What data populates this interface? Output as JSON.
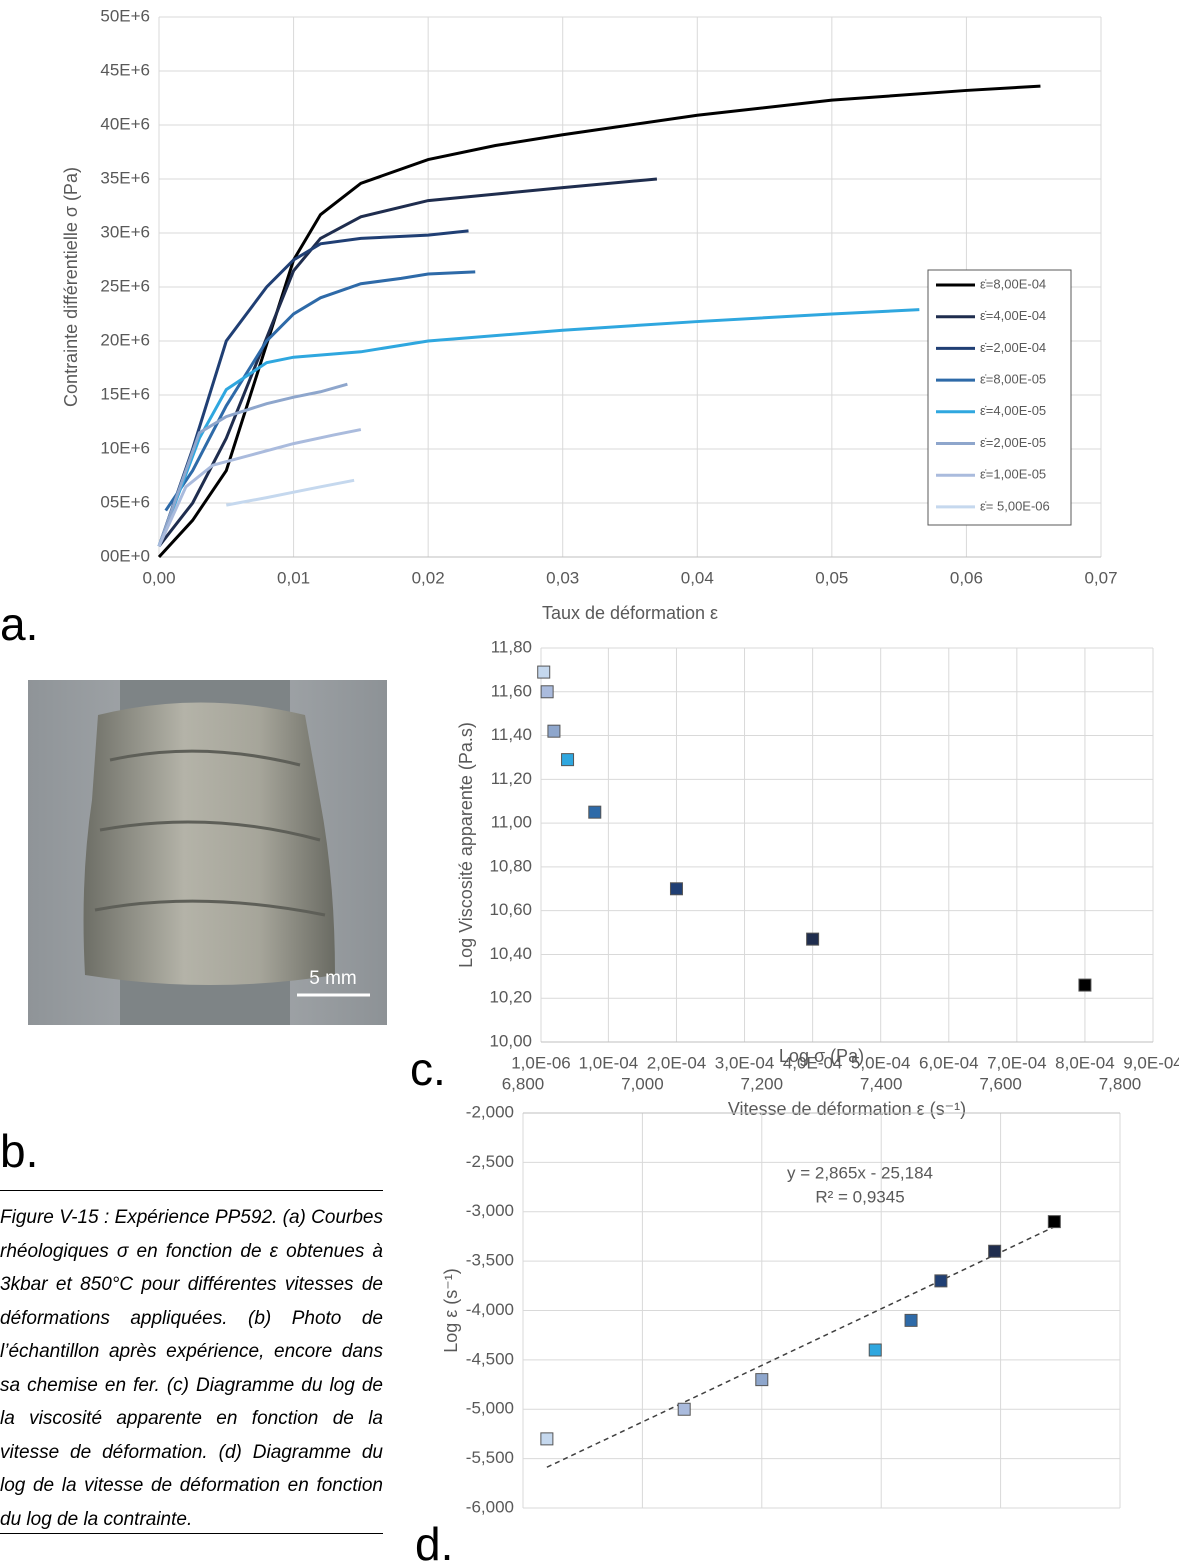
{
  "chart_data": [
    {
      "type": "line",
      "xlabel": "Taux de déformation ε",
      "ylabel": "Contrainte différentielle σ (Pa)",
      "xlim": [
        0,
        0.07
      ],
      "xticks": [
        {
          "value": 0,
          "label": "0,00"
        },
        {
          "value": 0.01,
          "label": "0,01"
        },
        {
          "value": 0.02,
          "label": "0,02"
        },
        {
          "value": 0.03,
          "label": "0,03"
        },
        {
          "value": 0.04,
          "label": "0,04"
        },
        {
          "value": 0.05,
          "label": "0,05"
        },
        {
          "value": 0.06,
          "label": "0,06"
        },
        {
          "value": 0.07,
          "label": "0,07"
        }
      ],
      "ylim": [
        0,
        50000000
      ],
      "yticks": [
        {
          "value": 0,
          "label": "00E+0"
        },
        {
          "value": 5000000,
          "label": "05E+6"
        },
        {
          "value": 10000000,
          "label": "10E+6"
        },
        {
          "value": 15000000,
          "label": "15E+6"
        },
        {
          "value": 20000000,
          "label": "20E+6"
        },
        {
          "value": 25000000,
          "label": "25E+6"
        },
        {
          "value": 30000000,
          "label": "30E+6"
        },
        {
          "value": 35000000,
          "label": "35E+6"
        },
        {
          "value": 40000000,
          "label": "40E+6"
        },
        {
          "value": 45000000,
          "label": "45E+6"
        },
        {
          "value": 50000000,
          "label": "50E+6"
        }
      ],
      "grid": true,
      "legend": "right",
      "series": [
        {
          "name": "ε̇=8,00E-04",
          "color": "#000000",
          "x": [
            0,
            0.0025,
            0.005,
            0.01,
            0.012,
            0.015,
            0.02,
            0.025,
            0.03,
            0.04,
            0.05,
            0.06,
            0.0655
          ],
          "values": [
            0,
            3400000,
            8000000,
            27500000,
            31700000,
            34600000,
            36800000,
            38100000,
            39100000,
            40900000,
            42300000,
            43200000,
            43600000
          ]
        },
        {
          "name": "ε̇=4,00E-04",
          "color": "#1f2d4e",
          "x": [
            0,
            0.0025,
            0.005,
            0.01,
            0.012,
            0.015,
            0.02,
            0.025,
            0.03,
            0.037
          ],
          "values": [
            1000000,
            5000000,
            11000000,
            26500000,
            29500000,
            31500000,
            33000000,
            33600000,
            34200000,
            35000000
          ]
        },
        {
          "name": "ε̇=2,00E-04",
          "color": "#203f74",
          "x": [
            0,
            0.0025,
            0.005,
            0.008,
            0.01,
            0.012,
            0.015,
            0.02,
            0.023
          ],
          "values": [
            1000000,
            10000000,
            20000000,
            25000000,
            27500000,
            29000000,
            29500000,
            29800000,
            30200000
          ]
        },
        {
          "name": "ε̇=8,00E-05",
          "color": "#2e6aa8",
          "x": [
            0.0005,
            0.0025,
            0.005,
            0.008,
            0.01,
            0.012,
            0.015,
            0.018,
            0.02,
            0.0235
          ],
          "values": [
            4300000,
            8000000,
            14000000,
            20000000,
            22500000,
            24000000,
            25300000,
            25800000,
            26200000,
            26400000
          ]
        },
        {
          "name": "ε̇=4,00E-05",
          "color": "#2fa7df",
          "x": [
            0,
            0.003,
            0.005,
            0.008,
            0.01,
            0.015,
            0.02,
            0.03,
            0.04,
            0.05,
            0.0565
          ],
          "values": [
            1000000,
            11000000,
            15500000,
            18000000,
            18500000,
            19000000,
            20000000,
            21000000,
            21800000,
            22500000,
            22900000
          ]
        },
        {
          "name": "ε̇=2,00E-05",
          "color": "#8ea6cc",
          "x": [
            0,
            0.003,
            0.005,
            0.008,
            0.01,
            0.012,
            0.014
          ],
          "values": [
            1000000,
            11500000,
            13000000,
            14200000,
            14800000,
            15300000,
            16000000
          ]
        },
        {
          "name": "ε̇=1,00E-05",
          "color": "#aabbdd",
          "x": [
            0,
            0.002,
            0.004,
            0.007,
            0.01,
            0.013,
            0.015
          ],
          "values": [
            1000000,
            6500000,
            8500000,
            9500000,
            10500000,
            11300000,
            11800000
          ]
        },
        {
          "name": "ε̇= 5,00E-06",
          "color": "#c5d8ee",
          "x": [
            0.005,
            0.008,
            0.01,
            0.012,
            0.0145
          ],
          "values": [
            4800000,
            5500000,
            6000000,
            6500000,
            7100000
          ]
        }
      ]
    },
    {
      "type": "scatter",
      "xlabel": "Vitesse de déformation ε (s⁻¹)",
      "ylabel": "Log Viscosité apparente  (Pa.s)",
      "xlim": [
        1e-06,
        0.0009
      ],
      "xticks": [
        {
          "value": 1e-06,
          "label": "1,0E-06"
        },
        {
          "value": 0.0001,
          "label": "1,0E-04"
        },
        {
          "value": 0.0002,
          "label": "2,0E-04"
        },
        {
          "value": 0.0003,
          "label": "3,0E-04"
        },
        {
          "value": 0.0004,
          "label": "4,0E-04"
        },
        {
          "value": 0.0005,
          "label": "5,0E-04"
        },
        {
          "value": 0.0006,
          "label": "6,0E-04"
        },
        {
          "value": 0.0007,
          "label": "7,0E-04"
        },
        {
          "value": 0.0008,
          "label": "8,0E-04"
        },
        {
          "value": 0.0009,
          "label": "9,0E-04"
        }
      ],
      "ylim": [
        10,
        11.8
      ],
      "yticks": [
        {
          "value": 10,
          "label": "10,00"
        },
        {
          "value": 10.2,
          "label": "10,20"
        },
        {
          "value": 10.4,
          "label": "10,40"
        },
        {
          "value": 10.6,
          "label": "10,60"
        },
        {
          "value": 10.8,
          "label": "10,80"
        },
        {
          "value": 11,
          "label": "11,00"
        },
        {
          "value": 11.2,
          "label": "11,20"
        },
        {
          "value": 11.4,
          "label": "11,40"
        },
        {
          "value": 11.6,
          "label": "11,60"
        },
        {
          "value": 11.8,
          "label": "11,80"
        }
      ],
      "grid": true,
      "x": [
        5e-06,
        1e-05,
        2e-05,
        4e-05,
        8e-05,
        0.0002,
        0.0004,
        0.0008
      ],
      "values": [
        11.69,
        11.6,
        11.42,
        11.29,
        11.05,
        10.7,
        10.47,
        10.26
      ],
      "colors": [
        "#c5d8ee",
        "#aabbdd",
        "#8ea6cc",
        "#2fa7df",
        "#2e6aa8",
        "#203f74",
        "#1f2d4e",
        "#000000"
      ]
    },
    {
      "type": "scatter",
      "xlabel": "Log σ (Pa)",
      "ylabel": "Log ε (s⁻¹)",
      "xaxis": "top",
      "xlim": [
        6.8,
        7.8
      ],
      "xticks": [
        {
          "value": 6.8,
          "label": "6,800"
        },
        {
          "value": 7,
          "label": "7,000"
        },
        {
          "value": 7.2,
          "label": "7,200"
        },
        {
          "value": 7.4,
          "label": "7,400"
        },
        {
          "value": 7.6,
          "label": "7,600"
        },
        {
          "value": 7.8,
          "label": "7,800"
        }
      ],
      "ylim": [
        -6,
        -2
      ],
      "yticks": [
        {
          "value": -2,
          "label": "-2,000"
        },
        {
          "value": -2.5,
          "label": "-2,500"
        },
        {
          "value": -3,
          "label": "-3,000"
        },
        {
          "value": -3.5,
          "label": "-3,500"
        },
        {
          "value": -4,
          "label": "-4,000"
        },
        {
          "value": -4.5,
          "label": "-4,500"
        },
        {
          "value": -5,
          "label": "-5,000"
        },
        {
          "value": -5.5,
          "label": "-5,500"
        },
        {
          "value": -6,
          "label": "-6,000"
        }
      ],
      "grid": true,
      "x": [
        6.84,
        7.07,
        7.2,
        7.39,
        7.45,
        7.5,
        7.59,
        7.69
      ],
      "values": [
        -5.3,
        -5,
        -4.7,
        -4.4,
        -4.1,
        -3.7,
        -3.4,
        -3.1
      ],
      "colors": [
        "#c5d8ee",
        "#aabbdd",
        "#8ea6cc",
        "#2fa7df",
        "#2e6aa8",
        "#203f74",
        "#1f2d4e",
        "#000000"
      ],
      "trendline": {
        "slope": 2.865,
        "intercept": -25.184,
        "equation": "y = 2,865x - 25,184",
        "r_squared": "R² = 0,9345"
      }
    }
  ],
  "panel_labels": [
    "a.",
    "b.",
    "c.",
    "d."
  ],
  "photo": {
    "scale_label": "5 mm"
  },
  "caption": "Figure V-15 : Expérience PP592. (a) Courbes rhéologiques σ en fonction de ε obtenues à 3kbar et 850°C pour différentes vitesses de déformations appliquées. (b) Photo de l’échantillon après expérience, encore dans sa chemise en fer. (c) Diagramme du log de la viscosité apparente en fonction de la vitesse de déformation. (d) Diagramme du log de la vitesse de déformation en fonction du log de la contrainte."
}
